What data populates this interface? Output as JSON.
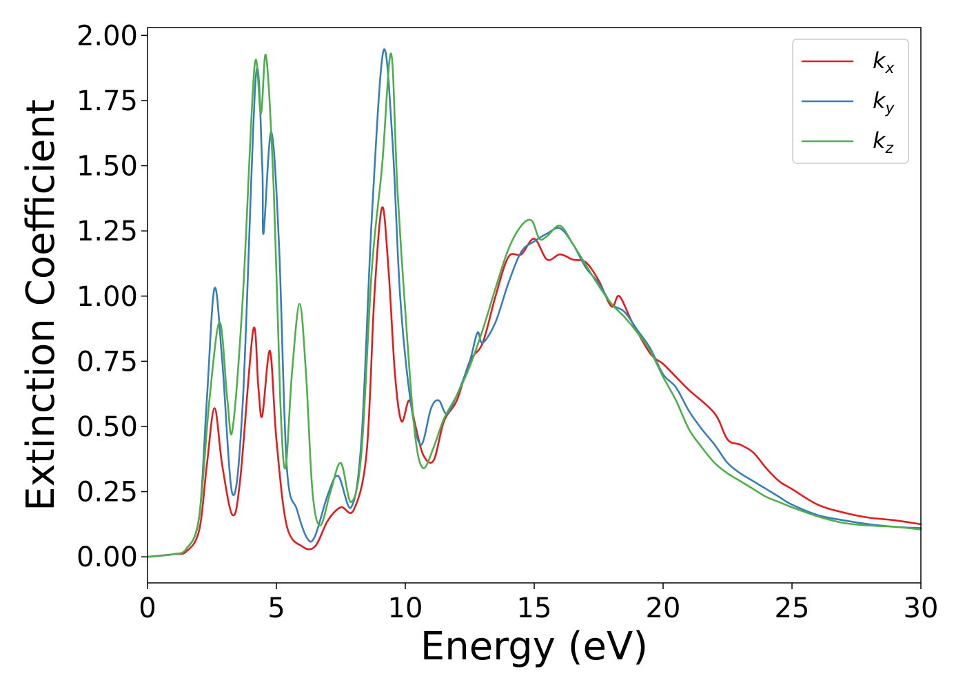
{
  "chart_data": {
    "type": "line",
    "title": "",
    "xlabel": "Energy (eV)",
    "ylabel": "Extinction Coefficient",
    "xlim": [
      0,
      30
    ],
    "ylim": [
      -0.1,
      2.03
    ],
    "xticks": [
      0,
      5,
      10,
      15,
      20,
      25,
      30
    ],
    "xtick_labels": [
      "0",
      "5",
      "10",
      "15",
      "20",
      "25",
      "30"
    ],
    "yticks": [
      0,
      0.25,
      0.5,
      0.75,
      1.0,
      1.25,
      1.5,
      1.75,
      2.0
    ],
    "ytick_labels": [
      "0.00",
      "0.25",
      "0.50",
      "0.75",
      "1.00",
      "1.25",
      "1.50",
      "1.75",
      "2.00"
    ],
    "grid": false,
    "legend_position": "top-right",
    "series": [
      {
        "name": "k_x",
        "label_base": "k",
        "label_sub": "x",
        "color": "#e41a1c",
        "points": [
          [
            0,
            0
          ],
          [
            1,
            0.01
          ],
          [
            1.5,
            0.02
          ],
          [
            2,
            0.1
          ],
          [
            2.3,
            0.35
          ],
          [
            2.6,
            0.57
          ],
          [
            2.9,
            0.35
          ],
          [
            3.3,
            0.16
          ],
          [
            3.6,
            0.3
          ],
          [
            4.1,
            0.87
          ],
          [
            4.3,
            0.65
          ],
          [
            4.45,
            0.54
          ],
          [
            4.75,
            0.79
          ],
          [
            5.0,
            0.45
          ],
          [
            5.4,
            0.12
          ],
          [
            6,
            0.04
          ],
          [
            6.5,
            0.04
          ],
          [
            7,
            0.14
          ],
          [
            7.5,
            0.19
          ],
          [
            8,
            0.18
          ],
          [
            8.5,
            0.4
          ],
          [
            8.8,
            1.0
          ],
          [
            9.1,
            1.34
          ],
          [
            9.35,
            1.1
          ],
          [
            9.6,
            0.7
          ],
          [
            9.85,
            0.52
          ],
          [
            10.15,
            0.6
          ],
          [
            10.4,
            0.5
          ],
          [
            10.7,
            0.39
          ],
          [
            11.1,
            0.37
          ],
          [
            11.5,
            0.52
          ],
          [
            12,
            0.6
          ],
          [
            12.5,
            0.75
          ],
          [
            13,
            0.82
          ],
          [
            13.5,
            1.0
          ],
          [
            14,
            1.15
          ],
          [
            14.5,
            1.16
          ],
          [
            15,
            1.22
          ],
          [
            15.5,
            1.14
          ],
          [
            16,
            1.16
          ],
          [
            16.5,
            1.14
          ],
          [
            17,
            1.13
          ],
          [
            17.5,
            1.06
          ],
          [
            18,
            0.96
          ],
          [
            18.3,
            1.0
          ],
          [
            18.8,
            0.9
          ],
          [
            19.5,
            0.78
          ],
          [
            20,
            0.74
          ],
          [
            20.5,
            0.69
          ],
          [
            21,
            0.64
          ],
          [
            22,
            0.55
          ],
          [
            22.5,
            0.45
          ],
          [
            23,
            0.43
          ],
          [
            23.5,
            0.4
          ],
          [
            24,
            0.34
          ],
          [
            24.5,
            0.29
          ],
          [
            25,
            0.26
          ],
          [
            26,
            0.2
          ],
          [
            27,
            0.17
          ],
          [
            28,
            0.15
          ],
          [
            29,
            0.14
          ],
          [
            30,
            0.125
          ]
        ]
      },
      {
        "name": "k_y",
        "label_base": "k",
        "label_sub": "y",
        "color": "#377eb8",
        "points": [
          [
            0,
            0
          ],
          [
            1,
            0.01
          ],
          [
            1.5,
            0.03
          ],
          [
            2,
            0.15
          ],
          [
            2.3,
            0.6
          ],
          [
            2.6,
            1.03
          ],
          [
            2.9,
            0.75
          ],
          [
            3.3,
            0.24
          ],
          [
            3.7,
            0.6
          ],
          [
            4.2,
            1.84
          ],
          [
            4.45,
            1.5
          ],
          [
            4.5,
            1.24
          ],
          [
            4.8,
            1.63
          ],
          [
            5.1,
            1.2
          ],
          [
            5.4,
            0.35
          ],
          [
            5.8,
            0.18
          ],
          [
            6.2,
            0.07
          ],
          [
            6.5,
            0.08
          ],
          [
            7,
            0.24
          ],
          [
            7.4,
            0.31
          ],
          [
            7.9,
            0.19
          ],
          [
            8.3,
            0.45
          ],
          [
            8.7,
            1.3
          ],
          [
            9.15,
            1.94
          ],
          [
            9.5,
            1.6
          ],
          [
            9.8,
            1.0
          ],
          [
            10.2,
            0.6
          ],
          [
            10.6,
            0.43
          ],
          [
            11,
            0.57
          ],
          [
            11.3,
            0.6
          ],
          [
            11.6,
            0.55
          ],
          [
            12,
            0.62
          ],
          [
            12.5,
            0.75
          ],
          [
            12.8,
            0.86
          ],
          [
            13,
            0.82
          ],
          [
            13.5,
            0.9
          ],
          [
            14,
            1.05
          ],
          [
            14.5,
            1.17
          ],
          [
            15,
            1.21
          ],
          [
            15.5,
            1.24
          ],
          [
            16,
            1.26
          ],
          [
            16.5,
            1.2
          ],
          [
            17,
            1.11
          ],
          [
            17.5,
            1.05
          ],
          [
            18,
            0.97
          ],
          [
            18.5,
            0.94
          ],
          [
            19,
            0.87
          ],
          [
            19.5,
            0.8
          ],
          [
            20,
            0.7
          ],
          [
            20.5,
            0.65
          ],
          [
            21,
            0.56
          ],
          [
            21.5,
            0.49
          ],
          [
            22,
            0.43
          ],
          [
            22.5,
            0.36
          ],
          [
            23,
            0.32
          ],
          [
            23.5,
            0.29
          ],
          [
            24,
            0.26
          ],
          [
            24.5,
            0.23
          ],
          [
            25,
            0.2
          ],
          [
            26,
            0.16
          ],
          [
            27,
            0.14
          ],
          [
            28,
            0.125
          ],
          [
            29,
            0.115
          ],
          [
            30,
            0.11
          ]
        ]
      },
      {
        "name": "k_z",
        "label_base": "k",
        "label_sub": "z",
        "color": "#4daf4a",
        "points": [
          [
            0,
            0
          ],
          [
            1,
            0.01
          ],
          [
            1.5,
            0.03
          ],
          [
            2,
            0.15
          ],
          [
            2.4,
            0.6
          ],
          [
            2.8,
            0.9
          ],
          [
            3.1,
            0.6
          ],
          [
            3.3,
            0.49
          ],
          [
            3.7,
            1.0
          ],
          [
            4.15,
            1.88
          ],
          [
            4.4,
            1.7
          ],
          [
            4.6,
            1.92
          ],
          [
            4.9,
            1.4
          ],
          [
            5.15,
            0.6
          ],
          [
            5.35,
            0.34
          ],
          [
            5.6,
            0.7
          ],
          [
            5.9,
            0.97
          ],
          [
            6.15,
            0.7
          ],
          [
            6.4,
            0.25
          ],
          [
            6.7,
            0.12
          ],
          [
            7.1,
            0.25
          ],
          [
            7.5,
            0.36
          ],
          [
            7.9,
            0.21
          ],
          [
            8.3,
            0.4
          ],
          [
            8.7,
            1.1
          ],
          [
            9.1,
            1.5
          ],
          [
            9.45,
            1.93
          ],
          [
            9.7,
            1.4
          ],
          [
            10.1,
            0.8
          ],
          [
            10.4,
            0.45
          ],
          [
            10.7,
            0.34
          ],
          [
            11.1,
            0.42
          ],
          [
            11.5,
            0.53
          ],
          [
            12,
            0.62
          ],
          [
            12.5,
            0.73
          ],
          [
            13,
            0.87
          ],
          [
            13.5,
            1.03
          ],
          [
            14,
            1.18
          ],
          [
            14.5,
            1.27
          ],
          [
            14.9,
            1.29
          ],
          [
            15.2,
            1.22
          ],
          [
            15.5,
            1.23
          ],
          [
            16,
            1.27
          ],
          [
            16.5,
            1.2
          ],
          [
            17,
            1.12
          ],
          [
            17.5,
            1.04
          ],
          [
            18,
            0.97
          ],
          [
            18.5,
            0.92
          ],
          [
            19,
            0.86
          ],
          [
            19.5,
            0.79
          ],
          [
            20,
            0.69
          ],
          [
            20.5,
            0.6
          ],
          [
            21,
            0.49
          ],
          [
            21.5,
            0.42
          ],
          [
            22,
            0.36
          ],
          [
            22.5,
            0.32
          ],
          [
            23,
            0.29
          ],
          [
            23.5,
            0.26
          ],
          [
            24,
            0.23
          ],
          [
            24.5,
            0.21
          ],
          [
            25,
            0.19
          ],
          [
            26,
            0.155
          ],
          [
            27,
            0.13
          ],
          [
            28,
            0.12
          ],
          [
            29,
            0.115
          ],
          [
            30,
            0.105
          ]
        ]
      }
    ]
  }
}
